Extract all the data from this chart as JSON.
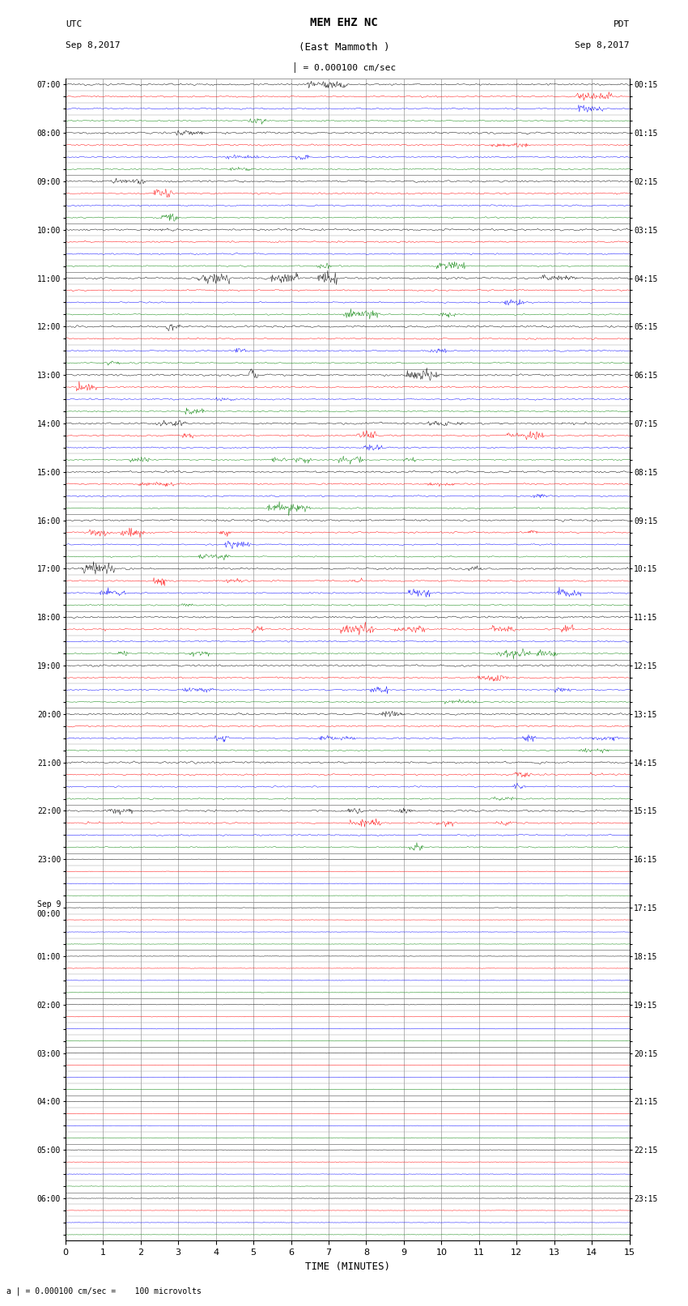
{
  "title_line1": "MEM EHZ NC",
  "title_line2": "(East Mammoth )",
  "scale_label": "= 0.000100 cm/sec",
  "left_header_line1": "UTC",
  "left_header_line2": "Sep 8,2017",
  "right_header_line1": "PDT",
  "right_header_line2": "Sep 8,2017",
  "bottom_label": "a | = 0.000100 cm/sec =    100 microvolts",
  "xlabel": "TIME (MINUTES)",
  "utc_hour_labels": [
    "07:00",
    "08:00",
    "09:00",
    "10:00",
    "11:00",
    "12:00",
    "13:00",
    "14:00",
    "15:00",
    "16:00",
    "17:00",
    "18:00",
    "19:00",
    "20:00",
    "21:00",
    "22:00",
    "23:00",
    "Sep 9\n00:00",
    "01:00",
    "02:00",
    "03:00",
    "04:00",
    "05:00",
    "06:00"
  ],
  "pdt_hour_labels": [
    "00:15",
    "01:15",
    "02:15",
    "03:15",
    "04:15",
    "05:15",
    "06:15",
    "07:15",
    "08:15",
    "09:15",
    "10:15",
    "11:15",
    "12:15",
    "13:15",
    "14:15",
    "15:15",
    "16:15",
    "17:15",
    "18:15",
    "19:15",
    "20:15",
    "21:15",
    "22:15",
    "23:15"
  ],
  "num_hours": 24,
  "traces_per_hour": 4,
  "time_minutes": 15,
  "colors": [
    "black",
    "red",
    "blue",
    "green"
  ],
  "bg_color": "white",
  "grid_color": "#999999",
  "noise_active_hours": 16,
  "fig_width": 8.5,
  "fig_height": 16.13
}
